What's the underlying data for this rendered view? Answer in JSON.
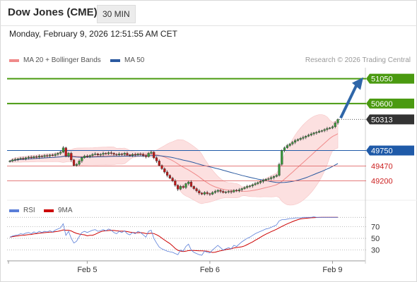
{
  "header": {
    "title": "Dow Jones (CME)",
    "timeframe": "30 MIN",
    "datetime": "Monday, February 9, 2026 12:51:55 AM CET"
  },
  "legend": {
    "ma20": "MA 20 + Bollinger Bands",
    "ma50": "MA 50",
    "credit": "Research © 2026 Trading Central",
    "rsi": "RSI",
    "ma9": "9MA"
  },
  "colors": {
    "up": "#3a9a3a",
    "down": "#c01818",
    "ma20": "#f08a8a",
    "ma50": "#2b5aa0",
    "band_fill": "#fce0e0",
    "resistance": "#4a9a10",
    "pivot": "#1f5aa8",
    "support": "#e06a6a",
    "last_tag": "#333333",
    "arrow": "#2f66a8",
    "rsi_line": "#5a7ed8",
    "ma9_line": "#cc0000"
  },
  "chart_data": {
    "type": "candlestick",
    "price_axis": {
      "ylim": [
        48850,
        51250
      ]
    },
    "levels": [
      {
        "value": 51050,
        "label": "51050",
        "kind": "resistance"
      },
      {
        "value": 50600,
        "label": "50600",
        "kind": "resistance"
      },
      {
        "value": 50313,
        "label": "50313",
        "kind": "last"
      },
      {
        "value": 49750,
        "label": "49750",
        "kind": "pivot"
      },
      {
        "value": 49470,
        "label": "49470",
        "kind": "support"
      },
      {
        "value": 49200,
        "label": "49200",
        "kind": "support"
      }
    ],
    "x_ticks": [
      {
        "index": 29,
        "label": "Feb 5"
      },
      {
        "index": 75,
        "label": "Feb 6"
      },
      {
        "index": 121,
        "label": "Feb 9"
      }
    ],
    "bars": 124,
    "closes": [
      49560,
      49580,
      49590,
      49600,
      49610,
      49600,
      49620,
      49630,
      49620,
      49640,
      49630,
      49650,
      49640,
      49660,
      49650,
      49670,
      49660,
      49680,
      49700,
      49720,
      49800,
      49650,
      49700,
      49580,
      49480,
      49500,
      49560,
      49620,
      49650,
      49640,
      49660,
      49680,
      49690,
      49670,
      49680,
      49700,
      49690,
      49710,
      49700,
      49680,
      49670,
      49690,
      49680,
      49700,
      49670,
      49660,
      49680,
      49670,
      49690,
      49680,
      49660,
      49640,
      49700,
      49720,
      49620,
      49560,
      49480,
      49420,
      49360,
      49300,
      49250,
      49200,
      49120,
      49050,
      49100,
      49080,
      49150,
      49180,
      49100,
      49060,
      49020,
      48980,
      48960,
      48990,
      48970,
      48960,
      48990,
      49010,
      49030,
      49010,
      48990,
      49000,
      49010,
      49000,
      49030,
      49020,
      49040,
      49060,
      49080,
      49100,
      49110,
      49130,
      49150,
      49170,
      49190,
      49210,
      49230,
      49240,
      49260,
      49280,
      49300,
      49500,
      49750,
      49800,
      49840,
      49870,
      49900,
      49930,
      49950,
      49970,
      49990,
      50010,
      50030,
      50050,
      50070,
      50080,
      50100,
      50110,
      50130,
      50150,
      50160,
      50180,
      50250,
      50313
    ],
    "rsi": {
      "ylim": [
        15,
        90
      ],
      "levels": [
        70,
        50,
        30
      ],
      "values": [
        52,
        54,
        55,
        56,
        58,
        57,
        59,
        60,
        58,
        61,
        59,
        62,
        60,
        62,
        61,
        63,
        61,
        64,
        66,
        68,
        75,
        55,
        62,
        50,
        42,
        45,
        53,
        60,
        62,
        60,
        62,
        64,
        65,
        62,
        63,
        65,
        63,
        66,
        64,
        60,
        58,
        62,
        60,
        63,
        58,
        56,
        60,
        58,
        62,
        60,
        56,
        52,
        62,
        64,
        50,
        42,
        35,
        32,
        30,
        28,
        27,
        26,
        24,
        22,
        30,
        28,
        36,
        40,
        30,
        26,
        24,
        22,
        21,
        28,
        26,
        25,
        30,
        34,
        38,
        34,
        30,
        32,
        34,
        32,
        38,
        36,
        40,
        44,
        47,
        50,
        52,
        55,
        58,
        60,
        62,
        64,
        66,
        67,
        69,
        71,
        73,
        80,
        82,
        82,
        83,
        84,
        84,
        85,
        85,
        85,
        86,
        86,
        86,
        86,
        87,
        86,
        86,
        86,
        86,
        86,
        86,
        86,
        86,
        86
      ]
    }
  }
}
